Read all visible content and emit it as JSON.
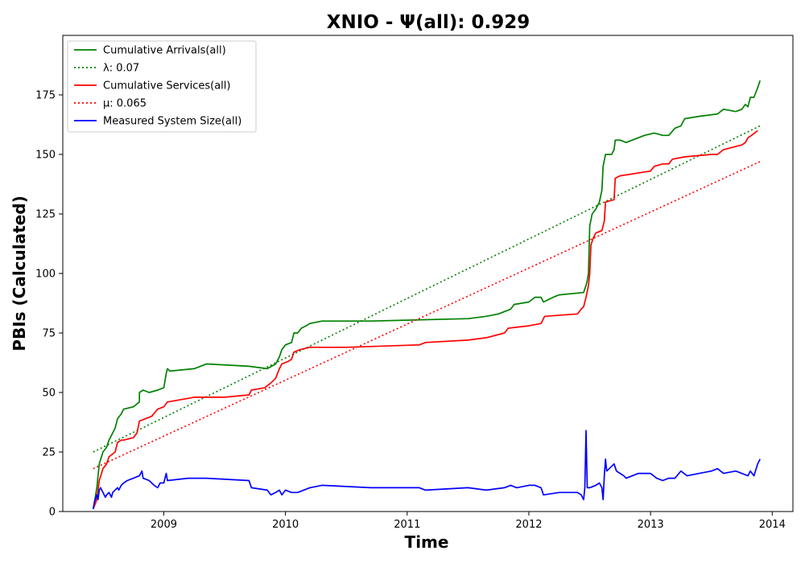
{
  "chart_data": {
    "type": "line",
    "title": "XNIO -  Ψ(all): 0.929",
    "xlabel": "Time",
    "ylabel": "PBIs (Calculated)",
    "xlim": [
      2008.17,
      2014.17
    ],
    "ylim": [
      0,
      200
    ],
    "x_ticks": [
      2009,
      2010,
      2011,
      2012,
      2013,
      2014
    ],
    "y_ticks": [
      0,
      25,
      50,
      75,
      100,
      125,
      150,
      175
    ],
    "grid": false,
    "legend_position": "upper-left",
    "series": [
      {
        "name": "Cumulative Arrivals(all)",
        "style": "solid",
        "color": "#008000",
        "points": [
          [
            2008.42,
            1
          ],
          [
            2008.45,
            10
          ],
          [
            2008.47,
            20
          ],
          [
            2008.5,
            25
          ],
          [
            2008.53,
            27
          ],
          [
            2008.55,
            30
          ],
          [
            2008.6,
            35
          ],
          [
            2008.62,
            39
          ],
          [
            2008.65,
            41
          ],
          [
            2008.67,
            43
          ],
          [
            2008.75,
            44
          ],
          [
            2008.8,
            46
          ],
          [
            2008.8,
            50
          ],
          [
            2008.83,
            51
          ],
          [
            2008.88,
            50
          ],
          [
            2008.95,
            51
          ],
          [
            2009.0,
            52
          ],
          [
            2009.02,
            58
          ],
          [
            2009.03,
            60
          ],
          [
            2009.05,
            59
          ],
          [
            2009.25,
            60
          ],
          [
            2009.35,
            62
          ],
          [
            2009.7,
            61
          ],
          [
            2009.85,
            60
          ],
          [
            2009.92,
            62
          ],
          [
            2009.95,
            65
          ],
          [
            2009.97,
            68
          ],
          [
            2010.0,
            70
          ],
          [
            2010.05,
            71
          ],
          [
            2010.07,
            75
          ],
          [
            2010.1,
            75
          ],
          [
            2010.13,
            77
          ],
          [
            2010.17,
            78
          ],
          [
            2010.2,
            79
          ],
          [
            2010.3,
            80
          ],
          [
            2010.7,
            80
          ],
          [
            2011.5,
            81
          ],
          [
            2011.65,
            82
          ],
          [
            2011.75,
            83
          ],
          [
            2011.85,
            85
          ],
          [
            2011.88,
            87
          ],
          [
            2012.0,
            88
          ],
          [
            2012.05,
            90
          ],
          [
            2012.1,
            90
          ],
          [
            2012.12,
            88
          ],
          [
            2012.2,
            90
          ],
          [
            2012.25,
            91
          ],
          [
            2012.45,
            92
          ],
          [
            2012.47,
            95
          ],
          [
            2012.48,
            97
          ],
          [
            2012.49,
            100
          ],
          [
            2012.5,
            120
          ],
          [
            2012.52,
            125
          ],
          [
            2012.55,
            127
          ],
          [
            2012.58,
            130
          ],
          [
            2012.6,
            135
          ],
          [
            2012.61,
            145
          ],
          [
            2012.63,
            150
          ],
          [
            2012.65,
            150
          ],
          [
            2012.68,
            150
          ],
          [
            2012.7,
            152
          ],
          [
            2012.71,
            156
          ],
          [
            2012.75,
            156
          ],
          [
            2012.8,
            155
          ],
          [
            2012.85,
            156
          ],
          [
            2012.95,
            158
          ],
          [
            2013.03,
            159
          ],
          [
            2013.1,
            158
          ],
          [
            2013.15,
            158
          ],
          [
            2013.2,
            161
          ],
          [
            2013.25,
            162
          ],
          [
            2013.28,
            165
          ],
          [
            2013.4,
            166
          ],
          [
            2013.55,
            167
          ],
          [
            2013.6,
            169
          ],
          [
            2013.7,
            168
          ],
          [
            2013.75,
            169
          ],
          [
            2013.78,
            171
          ],
          [
            2013.8,
            170
          ],
          [
            2013.82,
            174
          ],
          [
            2013.85,
            174
          ],
          [
            2013.88,
            178
          ],
          [
            2013.9,
            181
          ]
        ]
      },
      {
        "name": "λ: 0.07",
        "style": "dotted",
        "color": "#008000",
        "points": [
          [
            2008.42,
            25
          ],
          [
            2013.9,
            162
          ]
        ]
      },
      {
        "name": "Cumulative Services(all)",
        "style": "solid",
        "color": "#ff0000",
        "points": [
          [
            2008.42,
            1
          ],
          [
            2008.45,
            5
          ],
          [
            2008.47,
            13
          ],
          [
            2008.5,
            18
          ],
          [
            2008.53,
            20
          ],
          [
            2008.55,
            23
          ],
          [
            2008.6,
            25
          ],
          [
            2008.62,
            29
          ],
          [
            2008.65,
            30
          ],
          [
            2008.67,
            30
          ],
          [
            2008.75,
            31
          ],
          [
            2008.78,
            33
          ],
          [
            2008.8,
            38
          ],
          [
            2008.85,
            39
          ],
          [
            2008.9,
            40
          ],
          [
            2008.95,
            43
          ],
          [
            2009.0,
            44
          ],
          [
            2009.03,
            46
          ],
          [
            2009.25,
            48
          ],
          [
            2009.5,
            48
          ],
          [
            2009.7,
            49
          ],
          [
            2009.72,
            51
          ],
          [
            2009.83,
            52
          ],
          [
            2009.88,
            54
          ],
          [
            2009.92,
            56
          ],
          [
            2009.95,
            60
          ],
          [
            2009.97,
            62
          ],
          [
            2010.02,
            63
          ],
          [
            2010.05,
            64
          ],
          [
            2010.07,
            67
          ],
          [
            2010.12,
            68
          ],
          [
            2010.2,
            69
          ],
          [
            2010.5,
            69
          ],
          [
            2011.1,
            70
          ],
          [
            2011.15,
            71
          ],
          [
            2011.5,
            72
          ],
          [
            2011.65,
            73
          ],
          [
            2011.8,
            75
          ],
          [
            2011.83,
            77
          ],
          [
            2012.0,
            78
          ],
          [
            2012.1,
            79
          ],
          [
            2012.13,
            82
          ],
          [
            2012.4,
            83
          ],
          [
            2012.43,
            85
          ],
          [
            2012.45,
            86
          ],
          [
            2012.47,
            90
          ],
          [
            2012.49,
            95
          ],
          [
            2012.5,
            100
          ],
          [
            2012.51,
            112
          ],
          [
            2012.53,
            115
          ],
          [
            2012.55,
            117
          ],
          [
            2012.6,
            118
          ],
          [
            2012.62,
            122
          ],
          [
            2012.63,
            130
          ],
          [
            2012.7,
            131
          ],
          [
            2012.71,
            140
          ],
          [
            2012.75,
            141
          ],
          [
            2013.0,
            143
          ],
          [
            2013.03,
            145
          ],
          [
            2013.1,
            146
          ],
          [
            2013.15,
            146
          ],
          [
            2013.18,
            148
          ],
          [
            2013.28,
            149
          ],
          [
            2013.5,
            150
          ],
          [
            2013.55,
            150
          ],
          [
            2013.6,
            152
          ],
          [
            2013.75,
            154
          ],
          [
            2013.78,
            155
          ],
          [
            2013.8,
            157
          ],
          [
            2013.83,
            158
          ],
          [
            2013.88,
            160
          ]
        ]
      },
      {
        "name": "μ: 0.065",
        "style": "dotted",
        "color": "#ff0000",
        "points": [
          [
            2008.42,
            18
          ],
          [
            2013.9,
            147
          ]
        ]
      },
      {
        "name": "Measured System Size(all)",
        "style": "solid",
        "color": "#0000ff",
        "points": [
          [
            2008.42,
            1
          ],
          [
            2008.43,
            4
          ],
          [
            2008.45,
            7
          ],
          [
            2008.46,
            5
          ],
          [
            2008.47,
            9
          ],
          [
            2008.48,
            10
          ],
          [
            2008.5,
            8
          ],
          [
            2008.52,
            6
          ],
          [
            2008.53,
            7
          ],
          [
            2008.55,
            8
          ],
          [
            2008.57,
            6
          ],
          [
            2008.58,
            8
          ],
          [
            2008.6,
            9
          ],
          [
            2008.62,
            10
          ],
          [
            2008.63,
            9
          ],
          [
            2008.65,
            11
          ],
          [
            2008.67,
            12
          ],
          [
            2008.7,
            13
          ],
          [
            2008.75,
            14
          ],
          [
            2008.8,
            15
          ],
          [
            2008.82,
            17
          ],
          [
            2008.83,
            14
          ],
          [
            2008.88,
            13
          ],
          [
            2008.92,
            11
          ],
          [
            2008.95,
            10
          ],
          [
            2008.97,
            12
          ],
          [
            2009.0,
            12
          ],
          [
            2009.02,
            16
          ],
          [
            2009.03,
            13
          ],
          [
            2009.2,
            14
          ],
          [
            2009.35,
            14
          ],
          [
            2009.7,
            13
          ],
          [
            2009.72,
            10
          ],
          [
            2009.85,
            9
          ],
          [
            2009.88,
            7
          ],
          [
            2009.92,
            8
          ],
          [
            2009.95,
            9
          ],
          [
            2009.97,
            7
          ],
          [
            2010.0,
            9
          ],
          [
            2010.05,
            8
          ],
          [
            2010.1,
            8
          ],
          [
            2010.2,
            10
          ],
          [
            2010.3,
            11
          ],
          [
            2010.7,
            10
          ],
          [
            2011.1,
            10
          ],
          [
            2011.15,
            9
          ],
          [
            2011.5,
            10
          ],
          [
            2011.65,
            9
          ],
          [
            2011.8,
            10
          ],
          [
            2011.85,
            11
          ],
          [
            2011.9,
            10
          ],
          [
            2012.0,
            11
          ],
          [
            2012.05,
            11
          ],
          [
            2012.1,
            10
          ],
          [
            2012.12,
            7
          ],
          [
            2012.25,
            8
          ],
          [
            2012.4,
            8
          ],
          [
            2012.43,
            7
          ],
          [
            2012.45,
            5
          ],
          [
            2012.46,
            10
          ],
          [
            2012.47,
            34
          ],
          [
            2012.48,
            10
          ],
          [
            2012.5,
            10
          ],
          [
            2012.55,
            11
          ],
          [
            2012.58,
            12
          ],
          [
            2012.6,
            10
          ],
          [
            2012.61,
            5
          ],
          [
            2012.62,
            15
          ],
          [
            2012.63,
            22
          ],
          [
            2012.64,
            17
          ],
          [
            2012.68,
            19
          ],
          [
            2012.7,
            20
          ],
          [
            2012.72,
            17
          ],
          [
            2012.75,
            16
          ],
          [
            2012.78,
            15
          ],
          [
            2012.8,
            14
          ],
          [
            2012.85,
            15
          ],
          [
            2012.9,
            16
          ],
          [
            2013.0,
            16
          ],
          [
            2013.05,
            14
          ],
          [
            2013.1,
            13
          ],
          [
            2013.15,
            14
          ],
          [
            2013.2,
            14
          ],
          [
            2013.25,
            17
          ],
          [
            2013.3,
            15
          ],
          [
            2013.4,
            16
          ],
          [
            2013.5,
            17
          ],
          [
            2013.55,
            18
          ],
          [
            2013.6,
            16
          ],
          [
            2013.7,
            17
          ],
          [
            2013.75,
            16
          ],
          [
            2013.8,
            15
          ],
          [
            2013.82,
            17
          ],
          [
            2013.85,
            15
          ],
          [
            2013.88,
            20
          ],
          [
            2013.9,
            22
          ]
        ]
      }
    ]
  }
}
